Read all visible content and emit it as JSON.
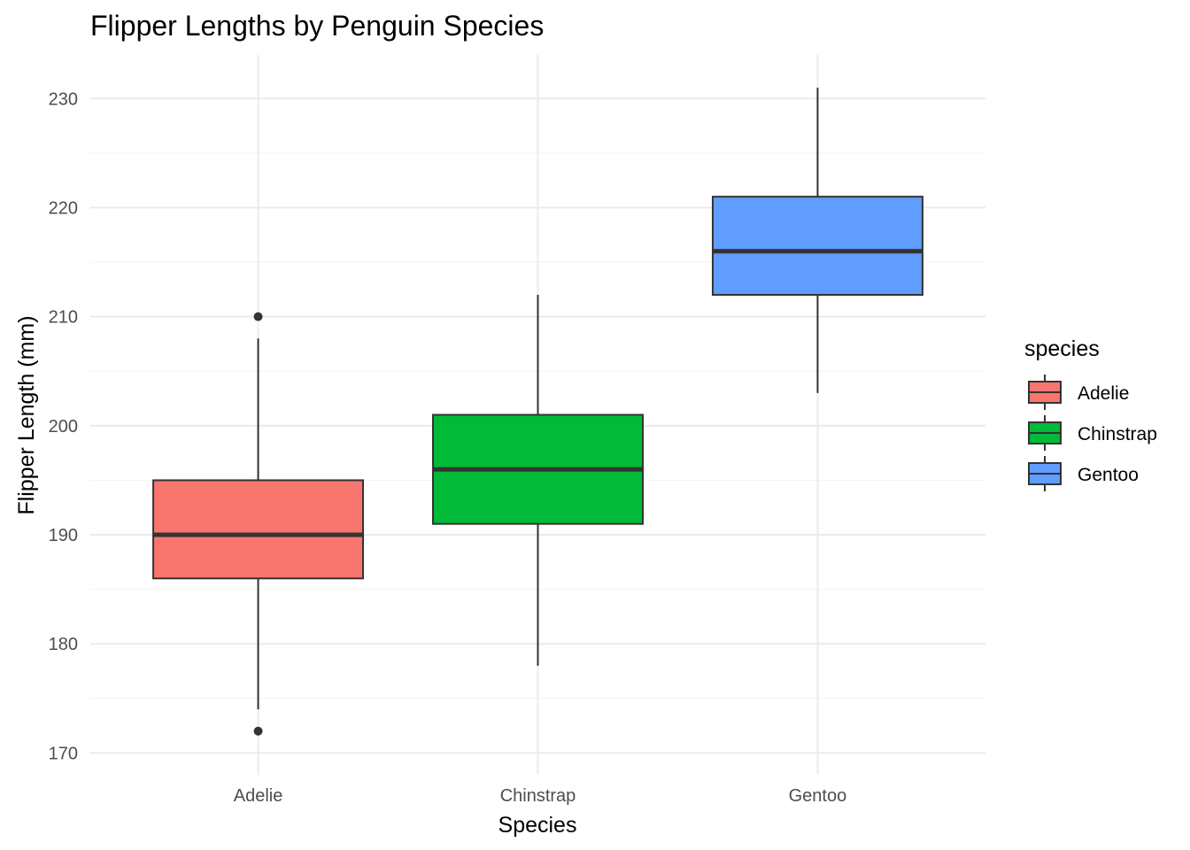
{
  "chart_data": {
    "type": "boxplot",
    "title": "Flipper Lengths by Penguin Species",
    "xlabel": "Species",
    "ylabel": "Flipper Length (mm)",
    "ylim": [
      168,
      234
    ],
    "yticks": [
      170,
      180,
      190,
      200,
      210,
      220,
      230
    ],
    "grid": true,
    "legend": {
      "title": "species",
      "position": "right"
    },
    "categories": [
      "Adelie",
      "Chinstrap",
      "Gentoo"
    ],
    "series": [
      {
        "name": "Adelie",
        "color": "#F8766D",
        "whisker_low": 174,
        "q1": 186,
        "median": 190,
        "q3": 195,
        "whisker_high": 208,
        "outliers": [
          210,
          172
        ]
      },
      {
        "name": "Chinstrap",
        "color": "#00BA38",
        "whisker_low": 178,
        "q1": 191,
        "median": 196,
        "q3": 201,
        "whisker_high": 212,
        "outliers": []
      },
      {
        "name": "Gentoo",
        "color": "#619CFF",
        "whisker_low": 203,
        "q1": 212,
        "median": 216,
        "q3": 221,
        "whisker_high": 231,
        "outliers": []
      }
    ]
  }
}
